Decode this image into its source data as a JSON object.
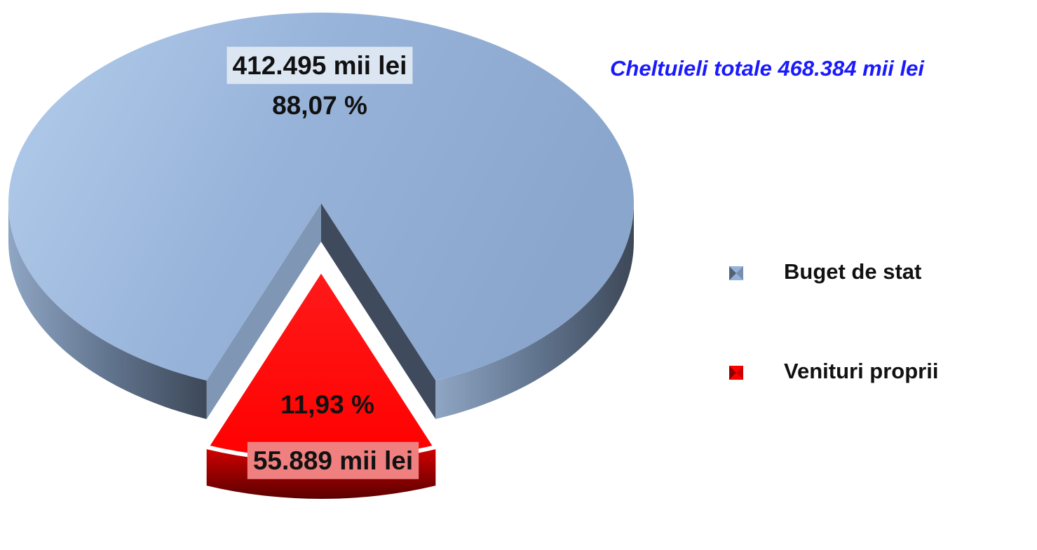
{
  "chart_data": {
    "type": "pie",
    "title": "Cheltuieli totale  468.384 mii lei",
    "categories": [
      "Buget de stat",
      "Venituri proprii"
    ],
    "values": [
      88.07,
      11.93
    ],
    "value_labels": [
      "88,07 %",
      "11,93 %"
    ],
    "amount_labels": [
      "412.495 mii lei",
      "55.889 mii lei"
    ],
    "colors": [
      "#95b3d7",
      "#ff0000"
    ],
    "legend": "right"
  }
}
